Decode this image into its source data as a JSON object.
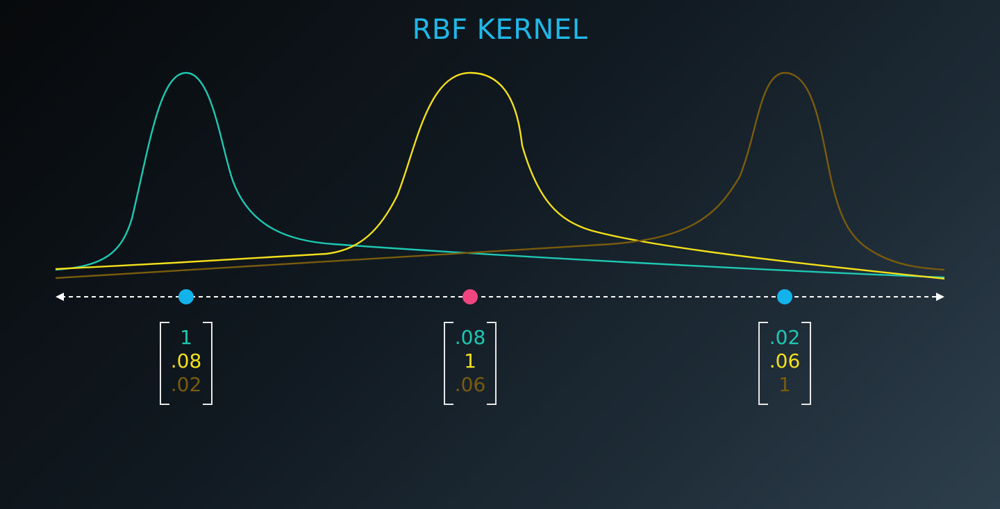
{
  "title": "RBF KERNEL",
  "colors": {
    "background": "#0d1318",
    "curve_1": "#1ec9b4",
    "curve_2": "#f4e01a",
    "curve_3": "#7a5c0c",
    "point_blue": "#12b3ea",
    "point_pink": "#f0457f",
    "axis": "#ffffff"
  },
  "curves": [
    {
      "name": "kernel-teal",
      "color": "#1ec9b4",
      "center": 268
    },
    {
      "name": "kernel-yellow",
      "color": "#f4e01a",
      "center": 677
    },
    {
      "name": "kernel-brown",
      "color": "#7a5c0c",
      "center": 1130
    }
  ],
  "points": [
    {
      "name": "point-left",
      "color": "#12b3ea"
    },
    {
      "name": "point-middle",
      "color": "#f0457f"
    },
    {
      "name": "point-right",
      "color": "#12b3ea"
    }
  ],
  "vectors": [
    {
      "values": [
        "1",
        ".08",
        ".02"
      ]
    },
    {
      "values": [
        ".08",
        "1",
        ".06"
      ]
    },
    {
      "values": [
        ".02",
        ".06",
        "1"
      ]
    }
  ]
}
